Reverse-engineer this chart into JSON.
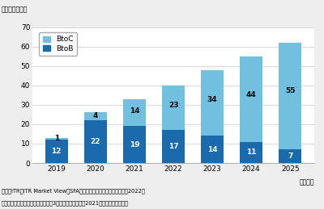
{
  "years": [
    "2019",
    "2020",
    "2021",
    "2022",
    "2023",
    "2024",
    "2025"
  ],
  "btob": [
    12,
    22,
    19,
    17,
    14,
    11,
    7
  ],
  "btoc": [
    1,
    4,
    14,
    23,
    34,
    44,
    55
  ],
  "btob_color": "#1a6aad",
  "btoc_color": "#72c0e0",
  "ylim": [
    0,
    70
  ],
  "yticks": [
    0,
    10,
    20,
    30,
    40,
    50,
    60,
    70
  ],
  "unit_label": "（単位：億円）",
  "xlabel": "（年度）",
  "legend_btoc": "BtoC",
  "legend_btob": "BtoB",
  "footnote1": "出典：ITR『ITR Market View：SFA／統合型マーケティング支援市場2022』",
  "footnote2": "＊ベンダーの売上金額を対象とし、3月期ベースで換算。2021年度以降は予測値。",
  "bg_color": "#eeeeee",
  "plot_bg_color": "#ffffff"
}
